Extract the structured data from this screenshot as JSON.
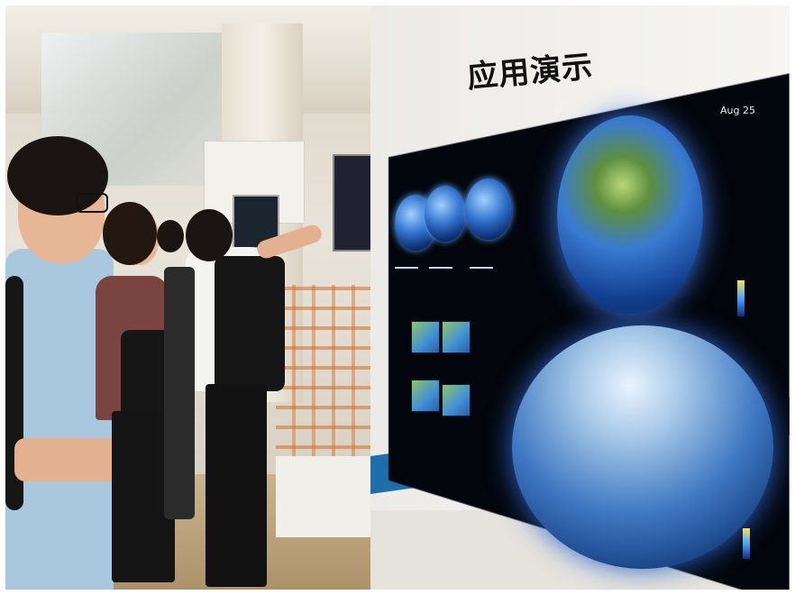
{
  "display": {
    "title": "应用演示",
    "date_label": "Aug 25"
  },
  "background": {
    "booth_label": "",
    "sign_label": ""
  },
  "colors": {
    "wall": "#f4f3ef",
    "stripe": "#1d6ea9",
    "screen": "#03060c",
    "globe_blue": "#2f6fc9"
  }
}
